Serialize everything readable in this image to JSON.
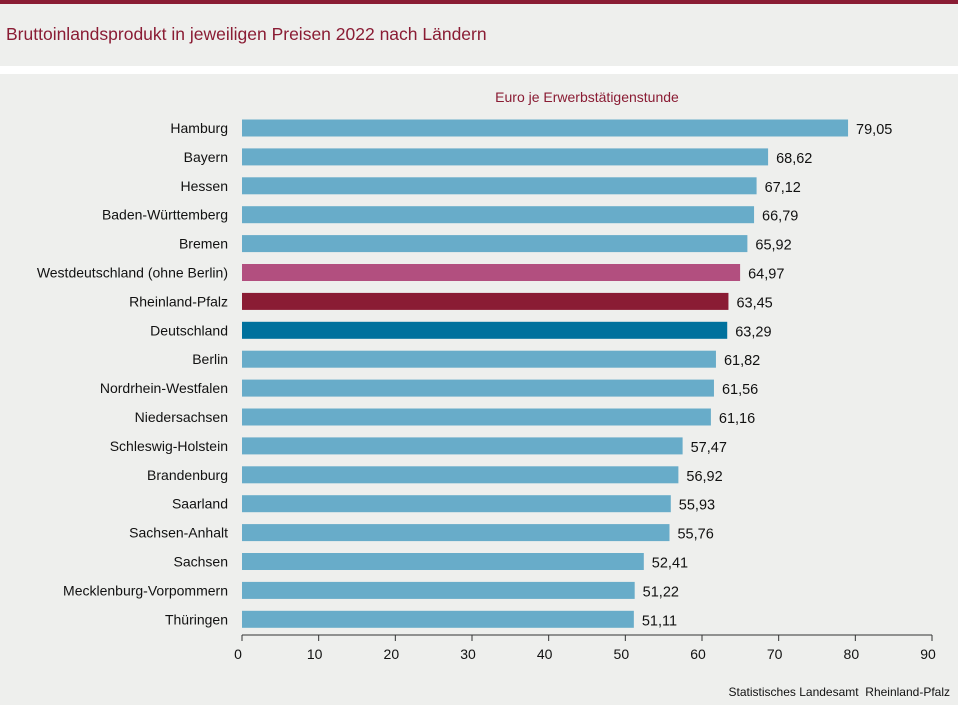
{
  "header": {
    "title": "Bruttoinlandsprodukt in jeweiligen Preisen 2022 nach Ländern"
  },
  "footer": {
    "source": "Statistisches Landesamt  Rheinland-Pfalz"
  },
  "colors": {
    "title": "#8a1c34",
    "default_bar": "#68acc9",
    "west_bar": "#b24f7f",
    "rlp_bar": "#8a1c34",
    "de_bar": "#00719d",
    "axis": "#333333"
  },
  "chart_data": {
    "type": "bar",
    "orientation": "horizontal",
    "title": "Bruttoinlandsprodukt in jeweiligen Preisen 2022 nach Ländern",
    "subtitle": "Euro je Erwerbstätigenstunde",
    "categories": [
      "Hamburg",
      "Bayern",
      "Hessen",
      "Baden-Württemberg",
      "Bremen",
      "Westdeutschland (ohne Berlin)",
      "Rheinland-Pfalz",
      "Deutschland",
      "Berlin",
      "Nordrhein-Westfalen",
      "Niedersachsen",
      "Schleswig-Holstein",
      "Brandenburg",
      "Saarland",
      "Sachsen-Anhalt",
      "Sachsen",
      "Mecklenburg-Vorpommern",
      "Thüringen"
    ],
    "values": [
      79.05,
      68.62,
      67.12,
      66.79,
      65.92,
      64.97,
      63.45,
      63.29,
      61.82,
      61.56,
      61.16,
      57.47,
      56.92,
      55.93,
      55.76,
      52.41,
      51.22,
      51.11
    ],
    "value_labels": [
      "79,05",
      "68,62",
      "67,12",
      "66,79",
      "65,92",
      "64,97",
      "63,45",
      "63,29",
      "61,82",
      "61,56",
      "61,16",
      "57,47",
      "56,92",
      "55,93",
      "55,76",
      "52,41",
      "51,22",
      "51,11"
    ],
    "highlight": {
      "Westdeutschland (ohne Berlin)": "west",
      "Rheinland-Pfalz": "rlp",
      "Deutschland": "de"
    },
    "xlim": [
      0,
      90
    ],
    "xticks": [
      0,
      10,
      20,
      30,
      40,
      50,
      60,
      70,
      80,
      90
    ],
    "xlabel": "",
    "ylabel": "",
    "grid": false,
    "legend": "none"
  }
}
